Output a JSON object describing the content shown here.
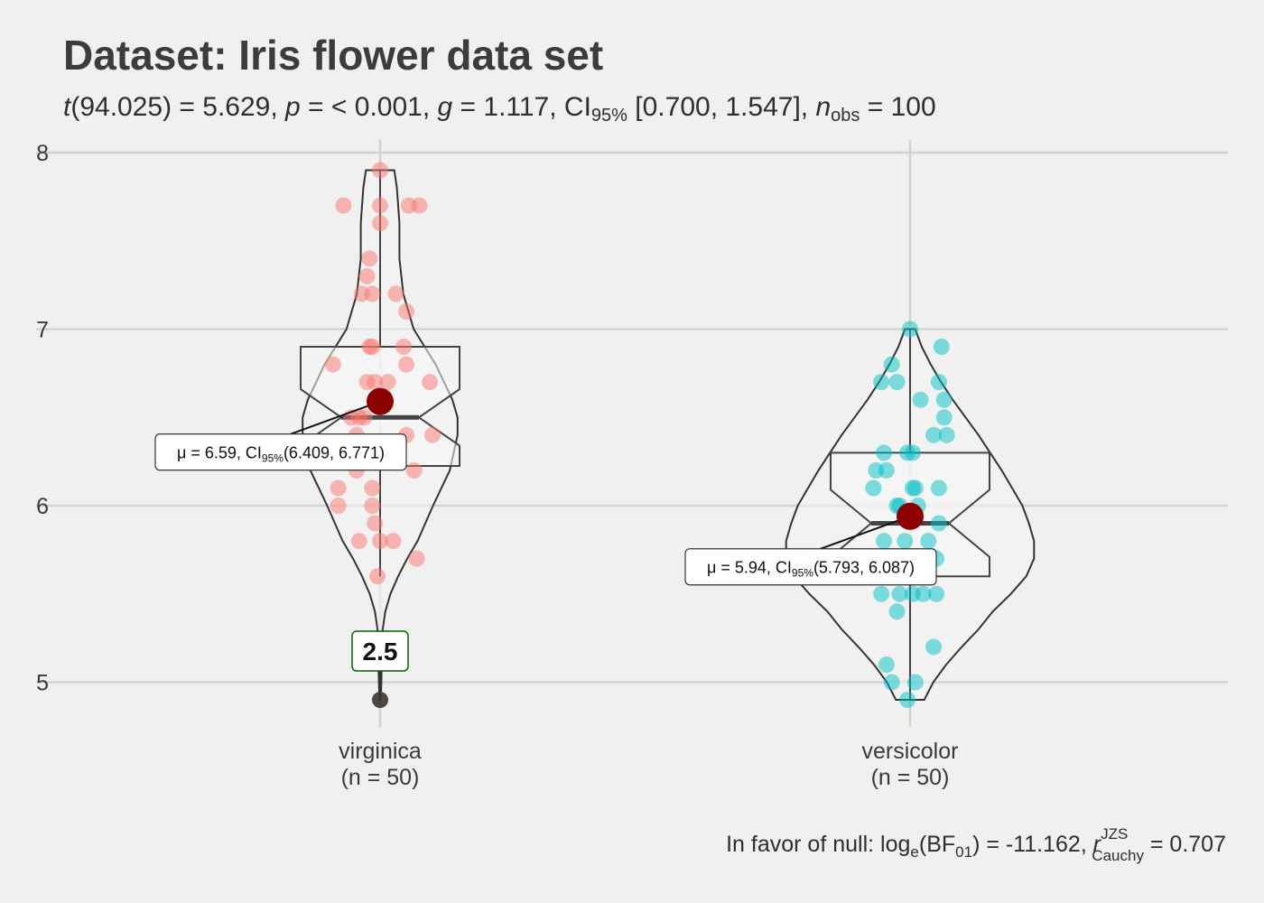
{
  "chart_data": {
    "type": "violin",
    "title": "Dataset: Iris flower data set",
    "subtitle": {
      "t_symbol": "t",
      "t_df": "(94.025)",
      "t_value": " = 5.629, ",
      "p_symbol": "p",
      "p_value": " = < 0.001, ",
      "g_symbol": "g",
      "g_value": " = 1.117, CI",
      "ci_level": "95%",
      "ci_value": " [0.700, 1.547], ",
      "n_symbol": "n",
      "n_sub": "obs",
      "n_value": " = 100"
    },
    "caption": {
      "lead": "In favor of null: log",
      "log_base": "e",
      "bf_open": "(BF",
      "bf_sub": "01",
      "bf_value": ") = -11.162, ",
      "r_symbol": "r",
      "r_sup": "JZS",
      "r_sub": "Cauchy",
      "r_value": " = 0.707"
    },
    "ylim": [
      4.7,
      8.1
    ],
    "yticks": [
      {
        "value": 5,
        "label": "5"
      },
      {
        "value": 6,
        "label": "6"
      },
      {
        "value": 7,
        "label": "7"
      },
      {
        "value": 8,
        "label": "8"
      }
    ],
    "grid": true,
    "groups": [
      {
        "name": "virginica",
        "n_label": "(n = 50)",
        "color": "#f8766d",
        "mean": 6.59,
        "ci": [
          6.409,
          6.771
        ],
        "mean_label": {
          "mu": "μ",
          "pre": " = 6.59, CI",
          "sub": "95%",
          "post": "(6.409, 6.771)"
        },
        "box": {
          "q1": 6.225,
          "median": 6.5,
          "q3": 6.9,
          "notch_low": 6.34,
          "notch_high": 6.66,
          "whisker_low": 5.6,
          "whisker_high": 7.9
        },
        "outliers": [
          {
            "value": 4.9,
            "label": "2.5"
          }
        ],
        "violin": [
          [
            4.9,
            0.005
          ],
          [
            5.0,
            0.01
          ],
          [
            5.1,
            0.012
          ],
          [
            5.2,
            0.014
          ],
          [
            5.3,
            0.02
          ],
          [
            5.4,
            0.04
          ],
          [
            5.5,
            0.08
          ],
          [
            5.6,
            0.14
          ],
          [
            5.7,
            0.21
          ],
          [
            5.8,
            0.29
          ],
          [
            6.0,
            0.41
          ],
          [
            6.2,
            0.54
          ],
          [
            6.4,
            0.6
          ],
          [
            6.5,
            0.6
          ],
          [
            6.6,
            0.56
          ],
          [
            6.8,
            0.43
          ],
          [
            7.0,
            0.26
          ],
          [
            7.2,
            0.18
          ],
          [
            7.4,
            0.15
          ],
          [
            7.6,
            0.15
          ],
          [
            7.8,
            0.13
          ],
          [
            7.9,
            0.11
          ]
        ],
        "points": [
          {
            "dx": 0.0,
            "y": 7.9
          },
          {
            "dx": -0.14,
            "y": 7.7
          },
          {
            "dx": 0.0,
            "y": 7.7
          },
          {
            "dx": 0.11,
            "y": 7.7
          },
          {
            "dx": 0.15,
            "y": 7.7
          },
          {
            "dx": 0.0,
            "y": 7.6
          },
          {
            "dx": -0.04,
            "y": 7.4
          },
          {
            "dx": -0.05,
            "y": 7.3
          },
          {
            "dx": -0.07,
            "y": 7.2
          },
          {
            "dx": -0.03,
            "y": 7.2
          },
          {
            "dx": 0.06,
            "y": 7.2
          },
          {
            "dx": 0.1,
            "y": 7.1
          },
          {
            "dx": -0.04,
            "y": 6.9
          },
          {
            "dx": -0.03,
            "y": 6.9
          },
          {
            "dx": 0.09,
            "y": 6.9
          },
          {
            "dx": -0.18,
            "y": 6.8
          },
          {
            "dx": 0.1,
            "y": 6.8
          },
          {
            "dx": -0.05,
            "y": 6.7
          },
          {
            "dx": -0.02,
            "y": 6.7
          },
          {
            "dx": 0.03,
            "y": 6.7
          },
          {
            "dx": 0.19,
            "y": 6.7
          },
          {
            "dx": -0.11,
            "y": 6.5
          },
          {
            "dx": -0.08,
            "y": 6.5
          },
          {
            "dx": -0.06,
            "y": 6.5
          },
          {
            "dx": -0.09,
            "y": 6.4
          },
          {
            "dx": 0.1,
            "y": 6.4
          },
          {
            "dx": 0.2,
            "y": 6.4
          },
          {
            "dx": -0.1,
            "y": 6.3
          },
          {
            "dx": -0.04,
            "y": 6.3
          },
          {
            "dx": 0.13,
            "y": 6.2
          },
          {
            "dx": -0.09,
            "y": 6.2
          },
          {
            "dx": -0.16,
            "y": 6.1
          },
          {
            "dx": -0.03,
            "y": 6.1
          },
          {
            "dx": -0.16,
            "y": 6.0
          },
          {
            "dx": -0.03,
            "y": 6.0
          },
          {
            "dx": -0.02,
            "y": 5.9
          },
          {
            "dx": -0.08,
            "y": 5.8
          },
          {
            "dx": 0.0,
            "y": 5.8
          },
          {
            "dx": 0.05,
            "y": 5.8
          },
          {
            "dx": 0.14,
            "y": 5.7
          },
          {
            "dx": -0.01,
            "y": 5.6
          },
          {
            "dx": 0.0,
            "y": 4.9
          }
        ]
      },
      {
        "name": "versicolor",
        "n_label": "(n = 50)",
        "color": "#00bfc4",
        "mean": 5.94,
        "ci": [
          5.793,
          6.087
        ],
        "mean_label": {
          "mu": "μ",
          "pre": " = 5.94, CI",
          "sub": "95%",
          "post": "(5.793, 6.087)"
        },
        "box": {
          "q1": 5.6,
          "median": 5.9,
          "q3": 6.3,
          "notch_low": 5.71,
          "notch_high": 6.09,
          "whisker_low": 4.9,
          "whisker_high": 7.0
        },
        "outliers": [],
        "violin": [
          [
            4.9,
            0.11
          ],
          [
            5.0,
            0.18
          ],
          [
            5.1,
            0.28
          ],
          [
            5.2,
            0.4
          ],
          [
            5.3,
            0.53
          ],
          [
            5.4,
            0.64
          ],
          [
            5.5,
            0.78
          ],
          [
            5.6,
            0.9
          ],
          [
            5.7,
            0.96
          ],
          [
            5.8,
            0.96
          ],
          [
            5.9,
            0.92
          ],
          [
            6.0,
            0.87
          ],
          [
            6.1,
            0.79
          ],
          [
            6.2,
            0.71
          ],
          [
            6.3,
            0.62
          ],
          [
            6.4,
            0.53
          ],
          [
            6.5,
            0.43
          ],
          [
            6.6,
            0.33
          ],
          [
            6.7,
            0.24
          ],
          [
            6.8,
            0.16
          ],
          [
            6.9,
            0.09
          ],
          [
            7.0,
            0.04
          ]
        ],
        "points": [
          {
            "dx": 0.0,
            "y": 7.0
          },
          {
            "dx": 0.12,
            "y": 6.9
          },
          {
            "dx": -0.07,
            "y": 6.8
          },
          {
            "dx": -0.11,
            "y": 6.7
          },
          {
            "dx": -0.05,
            "y": 6.7
          },
          {
            "dx": 0.11,
            "y": 6.7
          },
          {
            "dx": 0.04,
            "y": 6.6
          },
          {
            "dx": 0.13,
            "y": 6.6
          },
          {
            "dx": 0.13,
            "y": 6.5
          },
          {
            "dx": 0.09,
            "y": 6.4
          },
          {
            "dx": 0.14,
            "y": 6.4
          },
          {
            "dx": -0.1,
            "y": 6.3
          },
          {
            "dx": -0.01,
            "y": 6.3
          },
          {
            "dx": 0.01,
            "y": 6.3
          },
          {
            "dx": -0.13,
            "y": 6.2
          },
          {
            "dx": -0.09,
            "y": 6.2
          },
          {
            "dx": -0.14,
            "y": 6.1
          },
          {
            "dx": 0.01,
            "y": 6.1
          },
          {
            "dx": 0.02,
            "y": 6.1
          },
          {
            "dx": 0.11,
            "y": 6.1
          },
          {
            "dx": -0.05,
            "y": 6.0
          },
          {
            "dx": -0.04,
            "y": 6.0
          },
          {
            "dx": 0.03,
            "y": 6.0
          },
          {
            "dx": 0.11,
            "y": 5.9
          },
          {
            "dx": -0.1,
            "y": 5.8
          },
          {
            "dx": -0.02,
            "y": 5.8
          },
          {
            "dx": 0.07,
            "y": 5.8
          },
          {
            "dx": 0.1,
            "y": 5.7
          },
          {
            "dx": 0.06,
            "y": 5.6
          },
          {
            "dx": -0.11,
            "y": 5.5
          },
          {
            "dx": -0.04,
            "y": 5.5
          },
          {
            "dx": 0.01,
            "y": 5.5
          },
          {
            "dx": 0.05,
            "y": 5.5
          },
          {
            "dx": 0.1,
            "y": 5.5
          },
          {
            "dx": -0.05,
            "y": 5.4
          },
          {
            "dx": 0.09,
            "y": 5.2
          },
          {
            "dx": -0.09,
            "y": 5.1
          },
          {
            "dx": -0.07,
            "y": 5.0
          },
          {
            "dx": 0.02,
            "y": 5.0
          },
          {
            "dx": -0.01,
            "y": 4.9
          }
        ]
      }
    ]
  }
}
